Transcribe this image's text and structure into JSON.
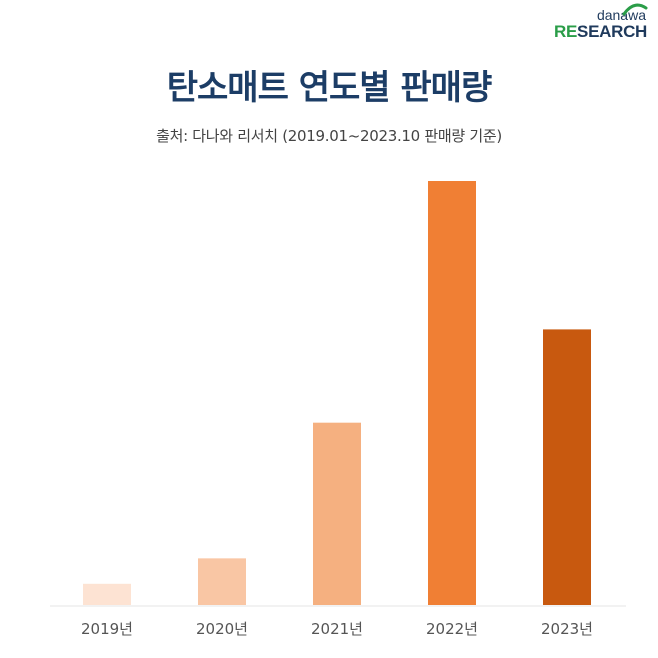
{
  "logo": {
    "line1": "danawa",
    "line2_accent": "RE",
    "line2_rest": "SEARCH",
    "accent_color": "#2a9d48",
    "brand_color": "#1f3a5c"
  },
  "title": "탄소매트 연도별 판매량",
  "subtitle": "출처: 다나와 리서치 (2019.01~2023.10 판매량 기준)",
  "chart_data": {
    "type": "bar",
    "title": "탄소매트 연도별 판매량",
    "subtitle": "출처: 다나와 리서치 (2019.01~2023.10 판매량 기준)",
    "categories": [
      "2019년",
      "2020년",
      "2021년",
      "2022년",
      "2023년"
    ],
    "values": [
      5,
      11,
      43,
      100,
      65
    ],
    "colors": [
      "#fde3d3",
      "#f9c6a4",
      "#f5b080",
      "#f07f34",
      "#c8590f"
    ],
    "ylim": [
      0,
      100
    ],
    "grid": false,
    "xlabel": "",
    "ylabel": ""
  }
}
